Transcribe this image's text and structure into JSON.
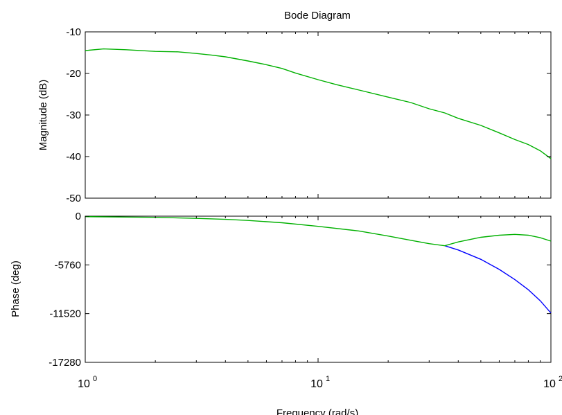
{
  "chart_data": {
    "type": "line",
    "title": "Bode Diagram",
    "xlabel": "Frequency  (rad/s)",
    "x_scale": "log",
    "x_range": [
      1,
      100
    ],
    "x_ticks": [
      {
        "value": 1,
        "base": "10",
        "exp": "0"
      },
      {
        "value": 10,
        "base": "10",
        "exp": "1"
      },
      {
        "value": 100,
        "base": "10",
        "exp": "2"
      }
    ],
    "grid": false,
    "panels": [
      {
        "id": "magnitude",
        "ylabel": "Magnitude (dB)",
        "ylim": [
          -50,
          -10
        ],
        "yticks": [
          -10,
          -20,
          -30,
          -40,
          -50
        ],
        "ytick_labels": [
          "-10",
          "-20",
          "-30",
          "-40",
          "-50"
        ],
        "series": [
          {
            "color": "#00b000",
            "x": [
              1,
              1.2,
              1.5,
              2,
              2.5,
              3,
              3.5,
              4,
              5,
              6,
              7,
              8,
              10,
              12,
              15,
              20,
              25,
              30,
              35,
              40,
              50,
              60,
              70,
              80,
              90,
              100
            ],
            "y": [
              -14.5,
              -14.1,
              -14.3,
              -14.7,
              -14.8,
              -15.2,
              -15.6,
              -16,
              -17,
              -17.9,
              -18.8,
              -19.9,
              -21.5,
              -22.7,
              -24,
              -25.7,
              -27,
              -28.5,
              -29.5,
              -30.8,
              -32.5,
              -34.3,
              -35.9,
              -37.1,
              -38.6,
              -40.5
            ]
          }
        ]
      },
      {
        "id": "phase",
        "ylabel": "Phase (deg)",
        "ylim": [
          -17280,
          0
        ],
        "yticks": [
          0,
          -5760,
          -11520,
          -17280
        ],
        "ytick_labels": [
          "0",
          "-5760",
          "-11520",
          "-17280"
        ],
        "series": [
          {
            "color": "#0000ff",
            "x": [
              35,
              40,
              50,
              60,
              70,
              80,
              90,
              100
            ],
            "y": [
              -3500,
              -4000,
              -5100,
              -6300,
              -7500,
              -8700,
              -10000,
              -11450
            ]
          },
          {
            "color": "#00b000",
            "x": [
              1,
              1.5,
              2,
              3,
              4,
              5,
              7,
              10,
              15,
              20,
              25,
              30,
              35,
              40,
              50,
              60,
              70,
              80,
              90,
              100
            ],
            "y": [
              -60,
              -110,
              -140,
              -260,
              -380,
              -510,
              -780,
              -1200,
              -1750,
              -2350,
              -2850,
              -3250,
              -3500,
              -3050,
              -2500,
              -2250,
              -2150,
              -2250,
              -2550,
              -2950
            ]
          }
        ]
      }
    ]
  }
}
